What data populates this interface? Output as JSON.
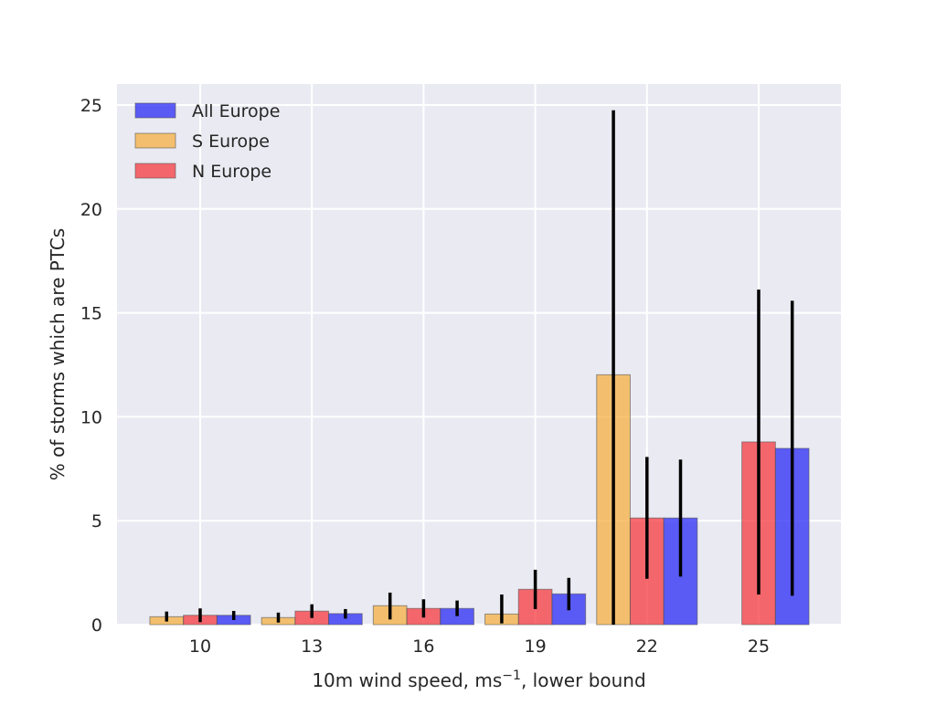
{
  "chart_data": {
    "type": "bar",
    "title": "",
    "xlabel": "10m wind speed, ms",
    "xlabel_sup": "−1",
    "xlabel_suffix": ", lower bound",
    "ylabel": "% of storms which are PTCs",
    "ylim": [
      0,
      26
    ],
    "yticks": [
      0,
      5,
      10,
      15,
      20,
      25
    ],
    "categories": [
      "10",
      "13",
      "16",
      "19",
      "22",
      "25"
    ],
    "grid": true,
    "legend_position": "top-left",
    "series": [
      {
        "name": "S Europe",
        "color": "#f5b041",
        "values": [
          0.38,
          0.34,
          0.91,
          0.51,
          12.02,
          0.0
        ],
        "err_low": [
          0.15,
          0.1,
          0.25,
          0.06,
          0.0,
          0.0
        ],
        "err_high": [
          0.63,
          0.58,
          1.54,
          1.45,
          24.75,
          0.0
        ]
      },
      {
        "name": "N Europe",
        "color": "#f5393f",
        "values": [
          0.45,
          0.65,
          0.78,
          1.7,
          5.13,
          8.79
        ],
        "err_low": [
          0.12,
          0.32,
          0.34,
          0.75,
          2.21,
          1.45
        ],
        "err_high": [
          0.78,
          0.98,
          1.22,
          2.64,
          8.07,
          16.12
        ]
      },
      {
        "name": "All Europe",
        "color": "#2a2af5",
        "values": [
          0.45,
          0.53,
          0.78,
          1.48,
          5.13,
          8.48
        ],
        "err_low": [
          0.22,
          0.29,
          0.41,
          0.69,
          2.31,
          1.39
        ],
        "err_high": [
          0.66,
          0.75,
          1.16,
          2.25,
          7.94,
          15.58
        ]
      }
    ],
    "legend_order": [
      "All Europe",
      "S Europe",
      "N Europe"
    ]
  }
}
